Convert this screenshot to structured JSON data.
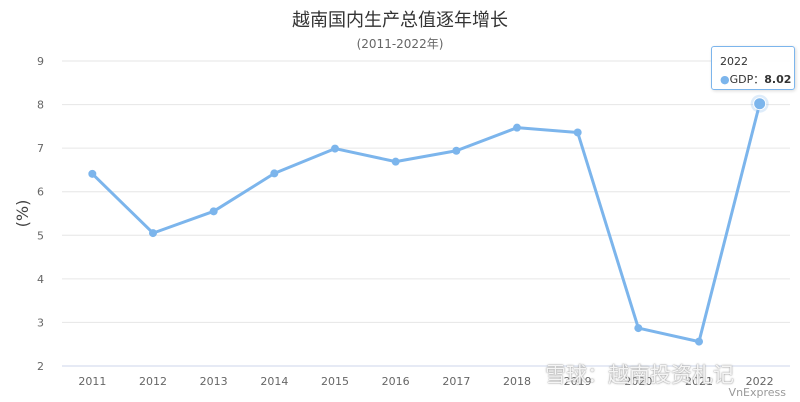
{
  "chart_data": {
    "type": "line",
    "title": "越南国内生产总值逐年增长",
    "subtitle": "(2011-2022年)",
    "ylabel": "(%)",
    "xlabel": "",
    "ylim": [
      2,
      9
    ],
    "yticks": [
      2,
      3,
      4,
      5,
      6,
      7,
      8,
      9
    ],
    "grid": true,
    "x": [
      "2011",
      "2012",
      "2013",
      "2014",
      "2015",
      "2016",
      "2017",
      "2018",
      "2019",
      "2020",
      "2021",
      "2022"
    ],
    "series": [
      {
        "name": "GDP",
        "color": "#7cb5ec",
        "values": [
          6.41,
          5.05,
          5.55,
          6.42,
          6.99,
          6.69,
          6.94,
          7.47,
          7.36,
          2.87,
          2.56,
          8.02
        ]
      }
    ]
  },
  "tooltip": {
    "year": "2022",
    "series_label": "GDP",
    "value": "8.02"
  },
  "watermark": "雪球：越南投资札记",
  "source": "VnExpress"
}
